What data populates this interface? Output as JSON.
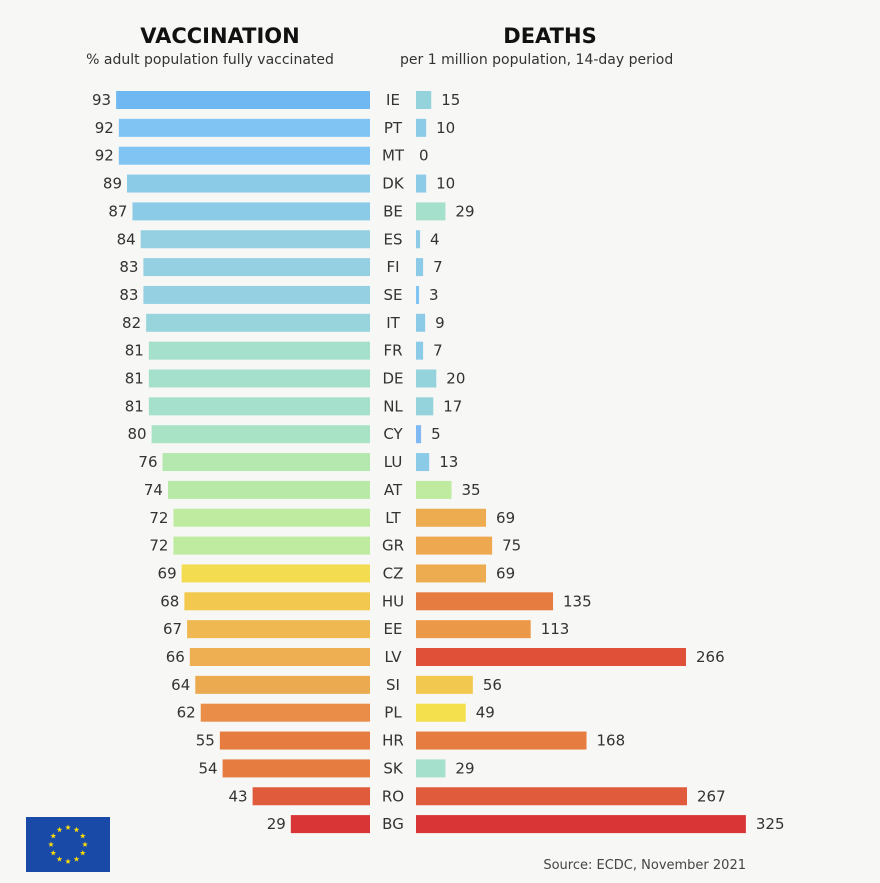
{
  "vaccination": {
    "title": "VACCINATION",
    "subtitle": "% adult population fully vaccinated"
  },
  "deaths": {
    "title": "DEATHS",
    "subtitle": "per 1 million population, 14-day period"
  },
  "source": "Source: ECDC, November 2021",
  "logo": "EU flag",
  "chart_data": {
    "type": "bar",
    "orientation": "horizontal",
    "categories": [
      "IE",
      "PT",
      "MT",
      "DK",
      "BE",
      "ES",
      "FI",
      "SE",
      "IT",
      "FR",
      "DE",
      "NL",
      "CY",
      "LU",
      "AT",
      "LT",
      "GR",
      "CZ",
      "HU",
      "EE",
      "LV",
      "SI",
      "PL",
      "HR",
      "SK",
      "RO",
      "BG"
    ],
    "series": [
      {
        "name": "VACCINATION",
        "values": [
          93,
          92,
          92,
          89,
          87,
          84,
          83,
          83,
          82,
          81,
          81,
          81,
          80,
          76,
          74,
          72,
          72,
          69,
          68,
          67,
          66,
          64,
          62,
          55,
          54,
          43,
          29
        ],
        "colors": [
          "#6fb8f2",
          "#7fc4f2",
          "#7fc4f2",
          "#8ccbe8",
          "#8ccbe8",
          "#94d0e2",
          "#94d0e2",
          "#94d0e2",
          "#98d4dc",
          "#a5e0cc",
          "#a5e0cc",
          "#a5e0cc",
          "#a9e3c6",
          "#b5e8ae",
          "#b8e9a6",
          "#bfeba0",
          "#bfeba0",
          "#f3dc50",
          "#f2c94e",
          "#f0b850",
          "#eeaf52",
          "#ecaa50",
          "#e98d48",
          "#e67c40",
          "#e67c40",
          "#e05a3c",
          "#d93536"
        ]
      },
      {
        "name": "DEATHS",
        "values": [
          15,
          10,
          0,
          10,
          29,
          4,
          7,
          3,
          9,
          7,
          20,
          17,
          5,
          13,
          35,
          69,
          75,
          69,
          135,
          113,
          266,
          56,
          49,
          168,
          29,
          267,
          325
        ],
        "colors": [
          "#94d2dc",
          "#8ccbe8",
          "#8ccbe8",
          "#8ccbe8",
          "#a5e0cc",
          "#8ccbe8",
          "#8ccbe8",
          "#7fc4f2",
          "#8ccbe8",
          "#8ccbe8",
          "#94d2dc",
          "#94d2dc",
          "#7fb8f2",
          "#8ccbe8",
          "#bfeba0",
          "#eeac50",
          "#eea850",
          "#eeac50",
          "#e67c40",
          "#eb9948",
          "#e05038",
          "#f2c94e",
          "#f3e04c",
          "#e67c40",
          "#a5e0cc",
          "#e05a3c",
          "#d93536"
        ]
      }
    ],
    "grid": false
  }
}
